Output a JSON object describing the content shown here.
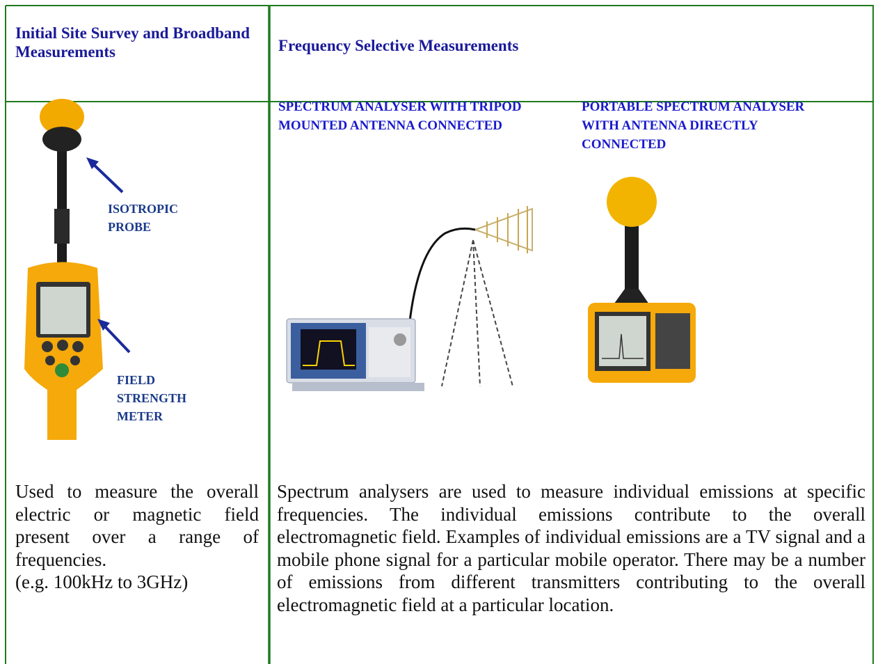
{
  "table": {
    "header": [
      "Initial Site Survey and Broadband Measurements",
      "Frequency Selective Measurements"
    ],
    "left": {
      "labels": [
        "ISOTROPIC PROBE",
        "FIELD STRENGTH METER"
      ],
      "description": [
        "Used to measure the overall electric or magnetic field present over a range of frequencies.",
        "(e.g. 100kHz to 3GHz)"
      ]
    },
    "right": {
      "captions": [
        "SPECTRUM ANALYSER WITH TRIPOD MOUNTED ANTENNA CONNECTED",
        "PORTABLE SPECTRUM ANALYSER WITH ANTENNA DIRECTLY CONNECTED"
      ],
      "description": "Spectrum analysers are used to measure individual emissions at specific frequencies. The individual emissions contribute to the overall electromagnetic field. Examples of individual emissions are a TV signal and a mobile phone signal for a particular mobile operator. There may be a number of emissions from different transmitters contributing to the overall electromagnetic field at a particular location."
    }
  }
}
